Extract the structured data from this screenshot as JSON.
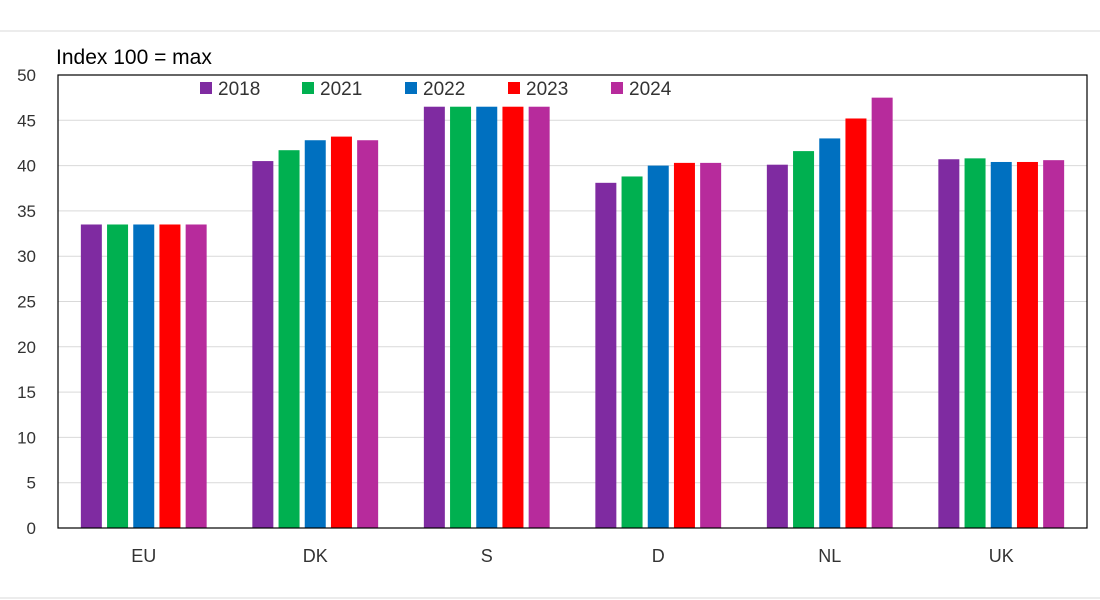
{
  "chart_data": {
    "type": "bar",
    "title": "",
    "xlabel": "",
    "ylabel": "Index 100 = max",
    "ylim": [
      0,
      50
    ],
    "yticks": [
      0,
      5,
      10,
      15,
      20,
      25,
      30,
      35,
      40,
      45,
      50
    ],
    "grid": true,
    "legend_position": "top",
    "categories": [
      "EU",
      "DK",
      "S",
      "D",
      "NL",
      "UK"
    ],
    "series": [
      {
        "name": "2018",
        "color": "#7f2ba1",
        "values": [
          33.5,
          40.5,
          46.5,
          38.1,
          40.1,
          40.7
        ]
      },
      {
        "name": "2021",
        "color": "#00b050",
        "values": [
          33.5,
          41.7,
          46.5,
          38.8,
          41.6,
          40.8
        ]
      },
      {
        "name": "2022",
        "color": "#0070c0",
        "values": [
          33.5,
          42.8,
          46.5,
          40.0,
          43.0,
          40.4
        ]
      },
      {
        "name": "2023",
        "color": "#ff0000",
        "values": [
          33.5,
          43.2,
          46.5,
          40.3,
          45.2,
          40.4
        ]
      },
      {
        "name": "2024",
        "color": "#b72b9c",
        "values": [
          33.5,
          42.8,
          46.5,
          40.3,
          47.5,
          40.6
        ]
      }
    ]
  }
}
